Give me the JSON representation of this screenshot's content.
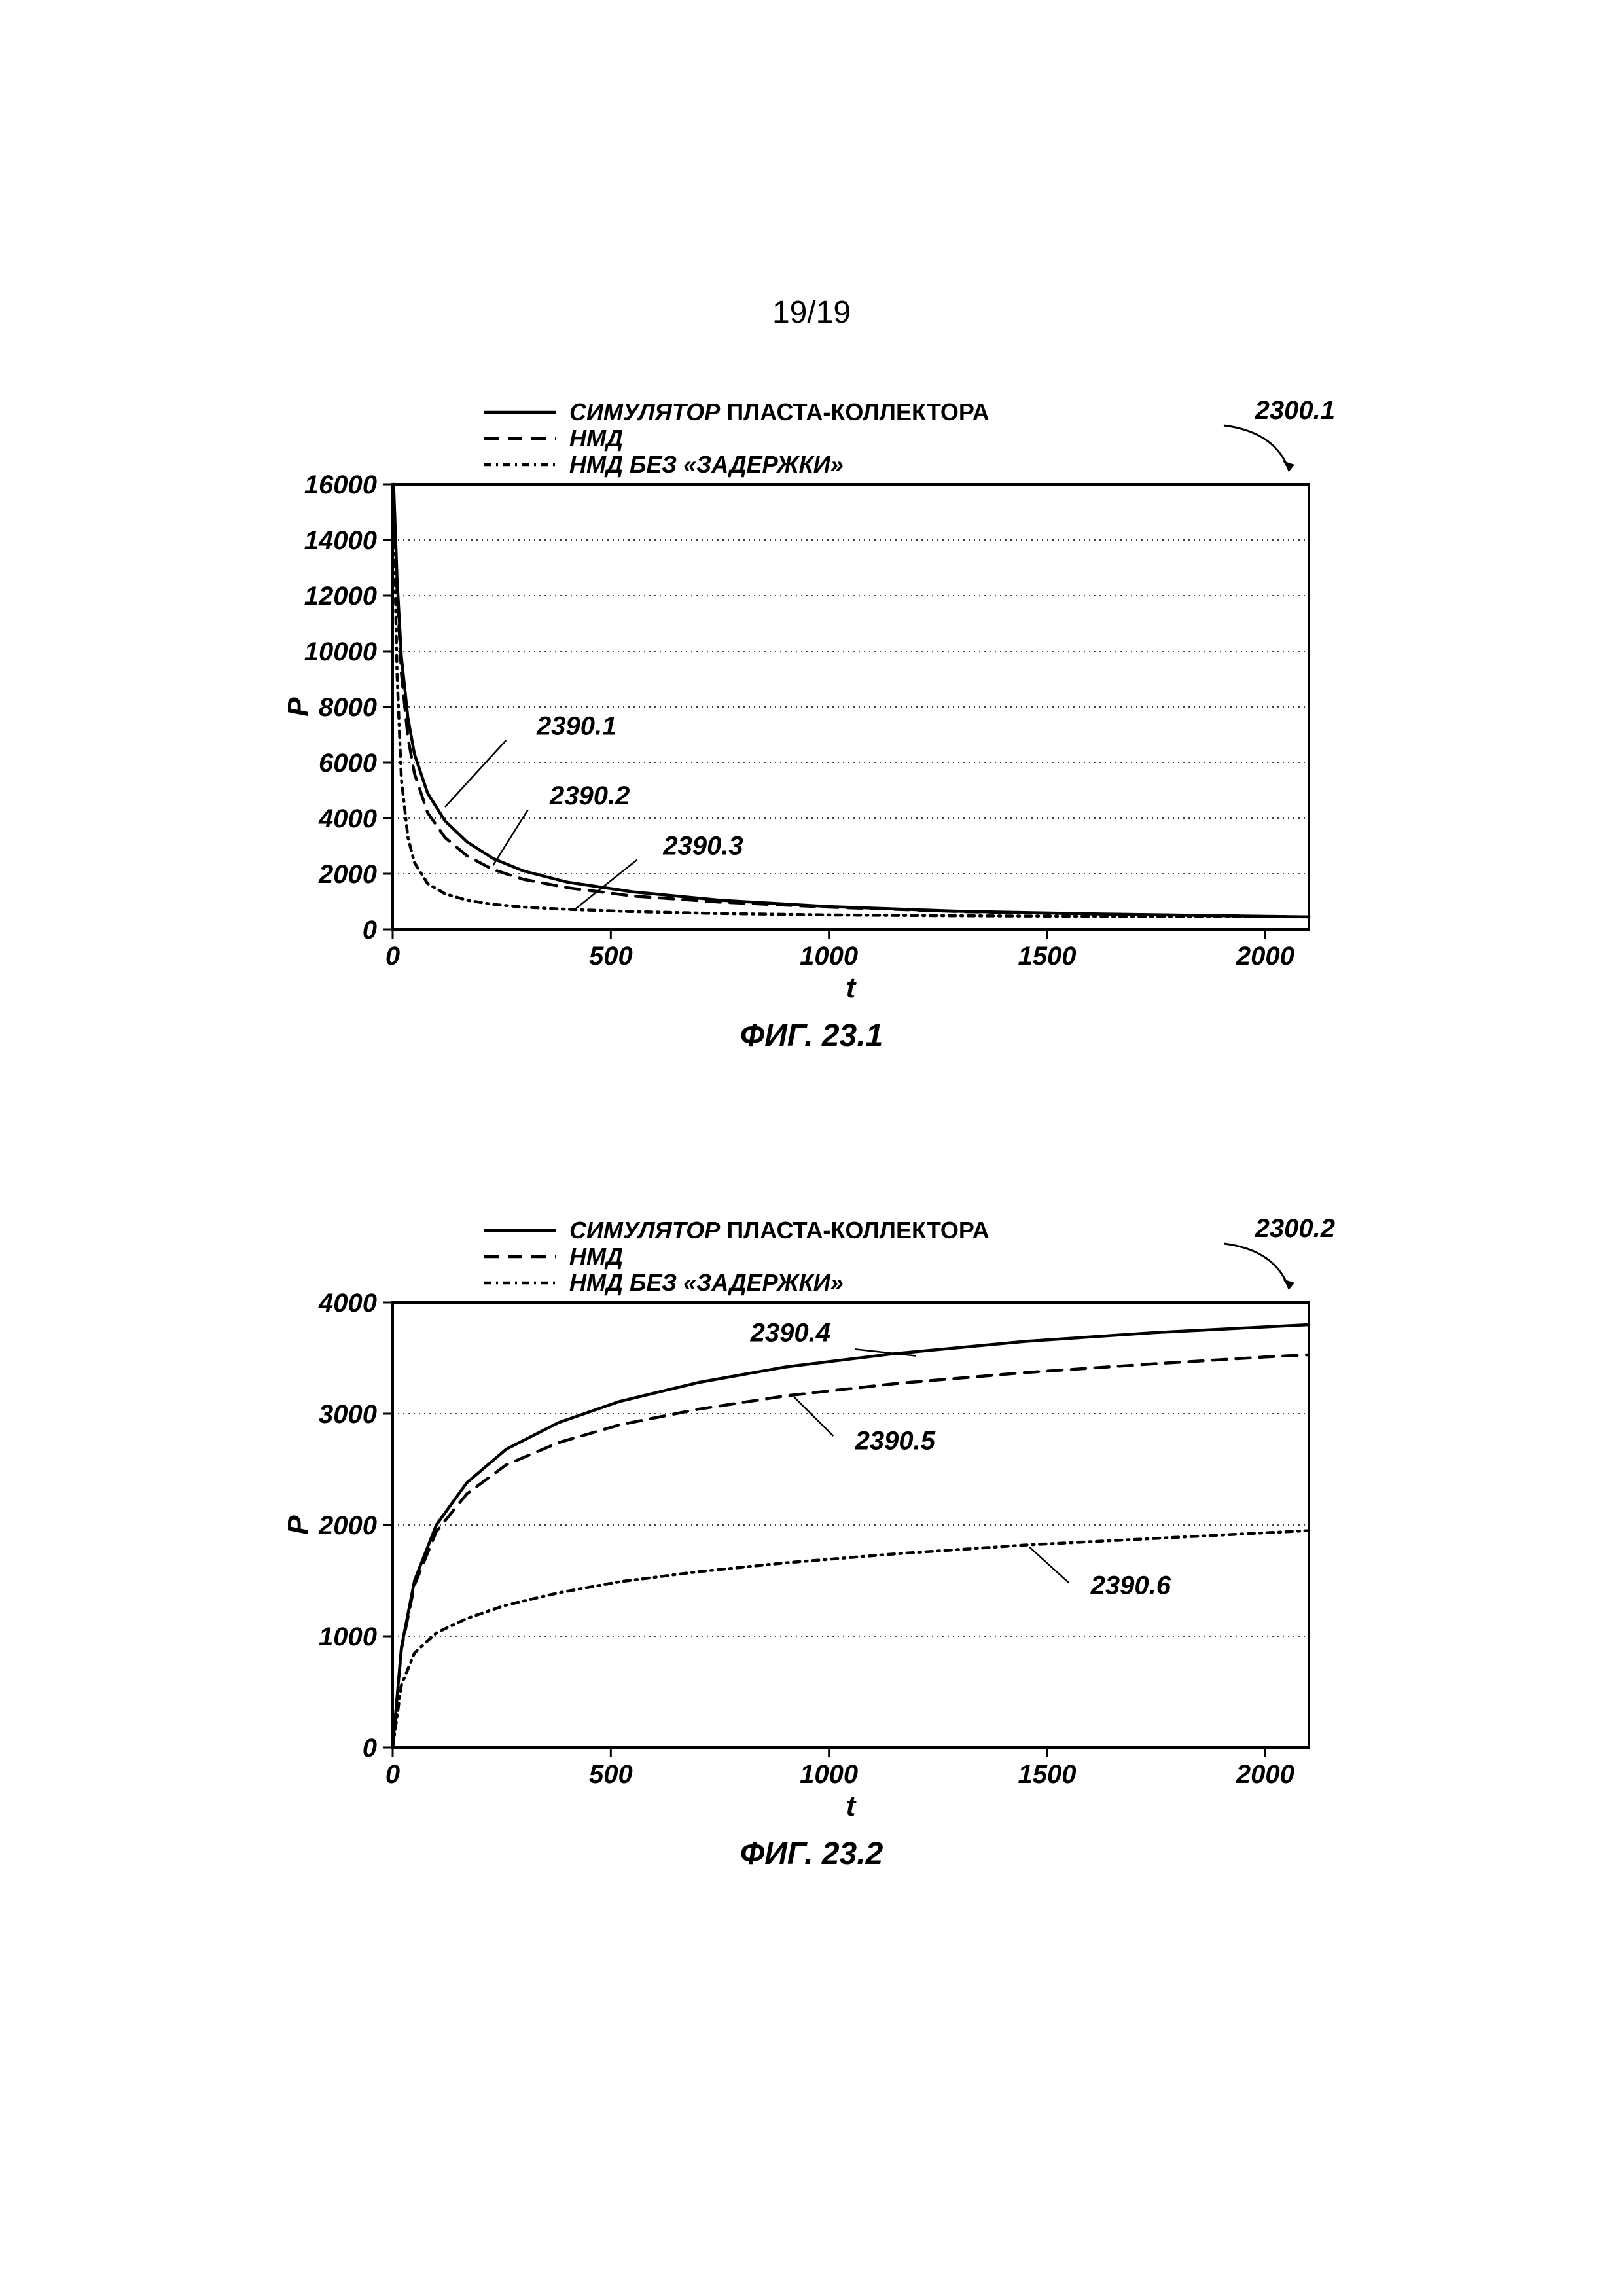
{
  "page_header": "19/19",
  "figure1": {
    "caption": "ФИГ. 23.1",
    "ref_label": "2300.1",
    "type": "line",
    "xlabel": "t",
    "ylabel": "P",
    "xlim": [
      0,
      2100
    ],
    "ylim": [
      0,
      16000
    ],
    "xticks": [
      0,
      500,
      1000,
      1500,
      2000
    ],
    "yticks": [
      0,
      2000,
      4000,
      6000,
      8000,
      10000,
      12000,
      14000,
      16000
    ],
    "axis_fontsize": 40,
    "label_fontsize": 44,
    "axis_color": "#000000",
    "grid_color": "#000000",
    "grid_dash": "2,6",
    "background_color": "#ffffff",
    "line_width": 4.5,
    "line_color": "#000000",
    "legend": {
      "items": [
        {
          "label_italic": "СИМУЛЯТОР",
          "label_rest": " ПЛАСТА-КОЛЛЕКТОРА",
          "dash": "none"
        },
        {
          "label_italic": "НМД",
          "label_rest": "",
          "dash": "22,14"
        },
        {
          "label_italic": "НМД БЕЗ «ЗАДЕРЖКИ»",
          "label_rest": "",
          "dash": "10,8,3,8"
        }
      ],
      "fontsize": 36
    },
    "series": [
      {
        "name": "2390.1",
        "dash": "none",
        "x": [
          2,
          5,
          10,
          20,
          35,
          50,
          80,
          120,
          170,
          230,
          300,
          400,
          550,
          750,
          1000,
          1300,
          1600,
          2000,
          2100
        ],
        "y": [
          16000,
          14800,
          12600,
          9800,
          7600,
          6300,
          4900,
          3900,
          3150,
          2550,
          2100,
          1700,
          1350,
          1050,
          820,
          650,
          560,
          470,
          450
        ]
      },
      {
        "name": "2390.2",
        "dash": "22,14",
        "x": [
          2,
          5,
          10,
          20,
          35,
          50,
          80,
          120,
          170,
          230,
          300,
          400,
          550,
          750,
          1000,
          1300,
          1600,
          2000,
          2100
        ],
        "y": [
          16000,
          14600,
          12200,
          9200,
          6900,
          5600,
          4200,
          3300,
          2650,
          2150,
          1800,
          1500,
          1200,
          980,
          800,
          640,
          555,
          470,
          450
        ]
      },
      {
        "name": "2390.3",
        "dash": "10,8,3,8",
        "x": [
          2,
          5,
          10,
          20,
          35,
          50,
          80,
          120,
          170,
          230,
          300,
          400,
          550,
          750,
          1000,
          1300,
          1600,
          2000,
          2100
        ],
        "y": [
          16000,
          13000,
          9200,
          5400,
          3300,
          2400,
          1650,
          1280,
          1050,
          900,
          800,
          720,
          640,
          570,
          520,
          490,
          470,
          455,
          450
        ]
      }
    ],
    "annotations": [
      {
        "text": "2390.1",
        "tx": 330,
        "ty": 7000,
        "lx1": 260,
        "ly1": 6800,
        "lx2": 120,
        "ly2": 4400
      },
      {
        "text": "2390.2",
        "tx": 360,
        "ty": 4500,
        "lx1": 310,
        "ly1": 4300,
        "lx2": 230,
        "ly2": 2300
      },
      {
        "text": "2390.3",
        "tx": 620,
        "ty": 2700,
        "lx1": 560,
        "ly1": 2500,
        "lx2": 420,
        "ly2": 750
      }
    ],
    "annot_fontsize": 40
  },
  "figure2": {
    "caption": "ФИГ. 23.2",
    "ref_label": "2300.2",
    "type": "line",
    "xlabel": "t",
    "ylabel": "P",
    "xlim": [
      0,
      2100
    ],
    "ylim": [
      0,
      4000
    ],
    "xticks": [
      0,
      500,
      1000,
      1500,
      2000
    ],
    "yticks": [
      0,
      1000,
      2000,
      3000,
      4000
    ],
    "axis_fontsize": 40,
    "label_fontsize": 44,
    "axis_color": "#000000",
    "grid_color": "#000000",
    "grid_dash": "2,6",
    "background_color": "#ffffff",
    "line_width": 4.5,
    "line_color": "#000000",
    "legend": {
      "items": [
        {
          "label_italic": "СИМУЛЯТОР",
          "label_rest": " ПЛАСТА-КОЛЛЕКТОРА",
          "dash": "none"
        },
        {
          "label_italic": "НМД",
          "label_rest": "",
          "dash": "22,14"
        },
        {
          "label_italic": "НМД БЕЗ «ЗАДЕРЖКИ»",
          "label_rest": "",
          "dash": "10,8,3,8"
        }
      ],
      "fontsize": 36
    },
    "series": [
      {
        "name": "2390.4",
        "dash": "none",
        "x": [
          0,
          20,
          50,
          100,
          170,
          260,
          380,
          520,
          700,
          900,
          1150,
          1450,
          1750,
          2000,
          2100
        ],
        "y": [
          0,
          900,
          1500,
          2000,
          2380,
          2680,
          2920,
          3110,
          3280,
          3420,
          3540,
          3650,
          3730,
          3780,
          3800
        ]
      },
      {
        "name": "2390.5",
        "dash": "22,14",
        "x": [
          0,
          20,
          50,
          100,
          170,
          260,
          380,
          520,
          700,
          900,
          1150,
          1450,
          1750,
          2000,
          2100
        ],
        "y": [
          0,
          880,
          1460,
          1940,
          2280,
          2540,
          2740,
          2900,
          3040,
          3160,
          3270,
          3370,
          3450,
          3510,
          3530
        ]
      },
      {
        "name": "2390.6",
        "dash": "10,8,3,8",
        "x": [
          0,
          20,
          50,
          100,
          170,
          260,
          380,
          520,
          700,
          900,
          1150,
          1450,
          1750,
          2000,
          2100
        ],
        "y": [
          0,
          560,
          850,
          1030,
          1160,
          1280,
          1390,
          1490,
          1580,
          1660,
          1740,
          1820,
          1880,
          1930,
          1950
        ]
      }
    ],
    "annotations": [
      {
        "text": "2390.4",
        "tx": 820,
        "ty": 3650,
        "lx1": 1060,
        "ly1": 3580,
        "lx2": 1200,
        "ly2": 3520
      },
      {
        "text": "2390.5",
        "tx": 1060,
        "ty": 2680,
        "lx1": 1010,
        "ly1": 2800,
        "lx2": 920,
        "ly2": 3150
      },
      {
        "text": "2390.6",
        "tx": 1600,
        "ty": 1380,
        "lx1": 1550,
        "ly1": 1480,
        "lx2": 1460,
        "ly2": 1800
      }
    ],
    "annot_fontsize": 40
  }
}
